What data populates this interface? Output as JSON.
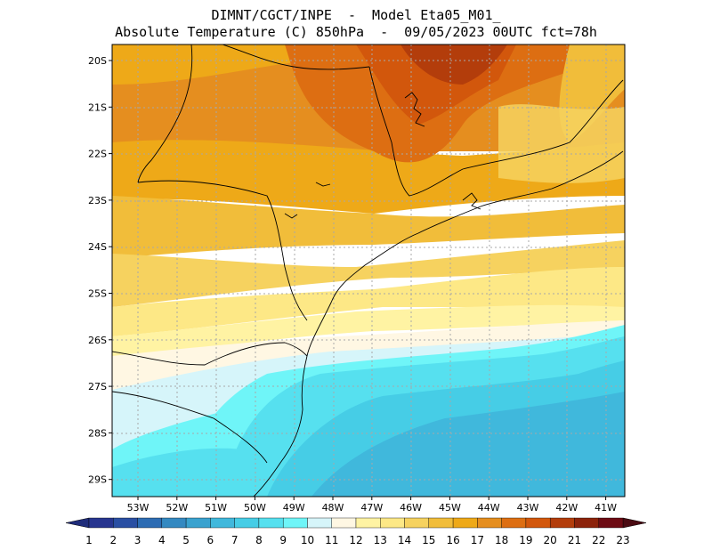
{
  "title": {
    "line1": "DIMNT/CGCT/INPE  -  Model Eta05_M01_",
    "line2": "Absolute Temperature (C) 850hPa  -  09/05/2023 00UTC fct=78h"
  },
  "map": {
    "lat_labels": [
      "20S",
      "21S",
      "22S",
      "23S",
      "24S",
      "25S",
      "26S",
      "27S",
      "28S",
      "29S"
    ],
    "lon_labels": [
      "53W",
      "52W",
      "51W",
      "50W",
      "49W",
      "48W",
      "47W",
      "46W",
      "45W",
      "44W",
      "43W",
      "42W",
      "41W"
    ],
    "lon_range": [
      -54,
      -40.4
    ],
    "lat_range": [
      -29.6,
      -19.8
    ]
  },
  "colorbar": {
    "labels": [
      "1",
      "2",
      "3",
      "4",
      "5",
      "6",
      "7",
      "8",
      "9",
      "10",
      "11",
      "12",
      "13",
      "14",
      "15",
      "16",
      "17",
      "18",
      "19",
      "20",
      "21",
      "22",
      "23"
    ],
    "colors": [
      "#27358f",
      "#2a4fa3",
      "#2d6cb3",
      "#3489c1",
      "#3aa2cf",
      "#40b8dc",
      "#46cde6",
      "#56e0ef",
      "#6ff5f8",
      "#d6f5fa",
      "#fff7e3",
      "#fff3a3",
      "#fde886",
      "#f6d25f",
      "#f1bd3a",
      "#eea918",
      "#e58e1f",
      "#dd6e12",
      "#d2570c",
      "#b33d0b",
      "#8c230b",
      "#6d0b14"
    ],
    "end_low_color": "#1f2c7a",
    "end_high_color": "#4a0a12"
  }
}
